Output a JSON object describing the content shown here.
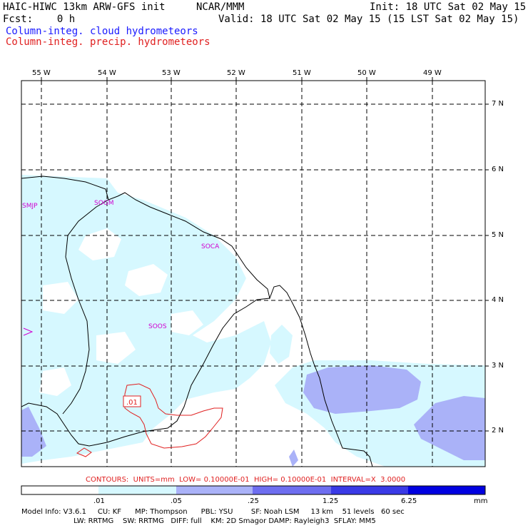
{
  "header": {
    "model_title": "HAIC-HIWC 13km ARW-GFS init",
    "org": "NCAR/MMM",
    "init": "Init: 18 UTC Sat 02 May 15",
    "fcst": "Fcst:    0 h",
    "valid": "Valid: 18 UTC Sat 02 May 15 (15 LST Sat 02 May 15)",
    "field1": "Column-integ. cloud hydrometeors",
    "field2": "Column-integ. precip. hydrometeors"
  },
  "map": {
    "lon_labels": [
      "55 W",
      "54 W",
      "53 W",
      "52 W",
      "51 W",
      "50 W",
      "49 W"
    ],
    "lat_labels": [
      "7 N",
      "6 N",
      "5 N",
      "4 N",
      "3 N",
      "2 N"
    ],
    "stations": [
      "SMJP",
      "SOGM",
      "SOCA",
      "SOOS"
    ],
    "contour_label": ".01",
    "colors": {
      "cloud_light": "#d6f8ff",
      "cloud_mid": "#aab2f8",
      "precip_contour": "#e02020",
      "coast": "#000000",
      "station": "#d000d0"
    }
  },
  "contours_line": "CONTOURS:  UNITS=mm  LOW= 0.10000E-01  HIGH= 0.10000E-01  INTERVAL=X  3.0000",
  "colorbar": {
    "ticks": [
      ".01",
      ".05",
      ".25",
      "1.25",
      "6.25"
    ],
    "unit": "mm",
    "colors": [
      "#ffffff",
      "#d6f8ff",
      "#aab2f8",
      "#6e6ef0",
      "#3a3ae6",
      "#0000e0"
    ]
  },
  "footer": {
    "line1": "Model Info: V3.6.1     CU: KF      MP: Thompson      PBL: YSU        SF: Noah LSM     13 km    51 levels   60 sec",
    "line2": "                       LW: RRTMG    SW: RRTMG   DIFF: full    KM: 2D Smagor DAMP: Rayleigh3  SFLAY: MM5"
  }
}
